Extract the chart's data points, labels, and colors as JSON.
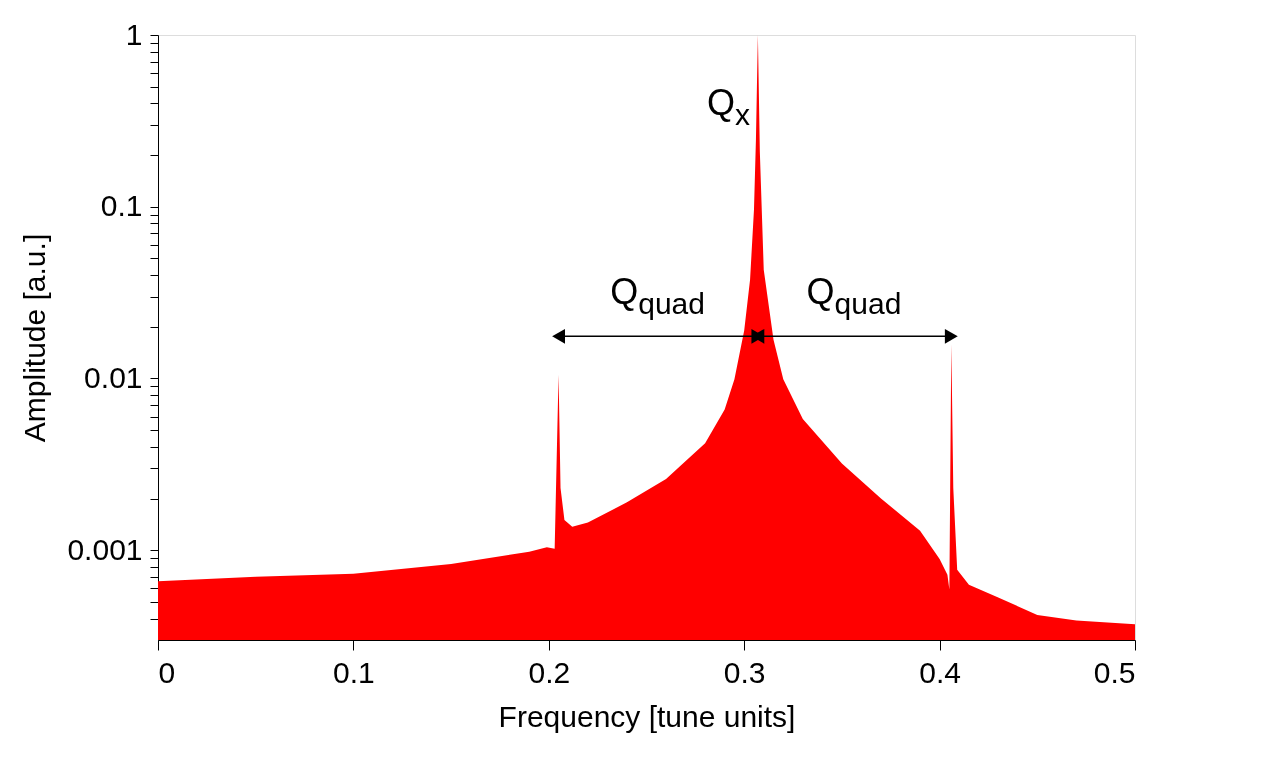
{
  "chart_data": {
    "type": "area",
    "xlabel": "Frequency [tune units]",
    "ylabel": "Amplitude [a.u.]",
    "log": "y",
    "grid": false,
    "xlim": [
      0,
      0.5
    ],
    "xticks": [
      0,
      0.1,
      0.2,
      0.3,
      0.4,
      0.5
    ],
    "ylim": [
      0.0003,
      1
    ],
    "yticks": [
      {
        "value": 0.0004,
        "label": null
      },
      {
        "value": 0.0005,
        "label": null
      },
      {
        "value": 0.0006,
        "label": null
      },
      {
        "value": 0.0007,
        "label": null
      },
      {
        "value": 0.0008,
        "label": null
      },
      {
        "value": 0.0009,
        "label": null
      },
      0.001,
      {
        "value": 0.002,
        "label": null
      },
      {
        "value": 0.003,
        "label": null
      },
      {
        "value": 0.004,
        "label": null
      },
      {
        "value": 0.005,
        "label": null
      },
      {
        "value": 0.006,
        "label": null
      },
      {
        "value": 0.007,
        "label": null
      },
      {
        "value": 0.008,
        "label": null
      },
      {
        "value": 0.009,
        "label": null
      },
      0.01,
      {
        "value": 0.02,
        "label": null
      },
      {
        "value": 0.03,
        "label": null
      },
      {
        "value": 0.04,
        "label": null
      },
      {
        "value": 0.05,
        "label": null
      },
      {
        "value": 0.06,
        "label": null
      },
      {
        "value": 0.07,
        "label": null
      },
      {
        "value": 0.08,
        "label": null
      },
      {
        "value": 0.09,
        "label": null
      },
      0.1,
      {
        "value": 0.2,
        "label": null
      },
      {
        "value": 0.3,
        "label": null
      },
      {
        "value": 0.4,
        "label": null
      },
      {
        "value": 0.5,
        "label": null
      },
      {
        "value": 0.6,
        "label": null
      },
      {
        "value": 0.7,
        "label": null
      },
      {
        "value": 0.8,
        "label": null
      },
      {
        "value": 0.9,
        "label": null
      },
      1
    ],
    "x": [
      0,
      0.05,
      0.1,
      0.15,
      0.19,
      0.199,
      0.203,
      0.205,
      0.206,
      0.208,
      0.212,
      0.22,
      0.24,
      0.26,
      0.28,
      0.29,
      0.295,
      0.3,
      0.303,
      0.305,
      0.306,
      0.307,
      0.308,
      0.31,
      0.315,
      0.32,
      0.33,
      0.35,
      0.37,
      0.39,
      0.4,
      0.404,
      0.405,
      0.406,
      0.407,
      0.409,
      0.415,
      0.43,
      0.45,
      0.47,
      0.5
    ],
    "series": [
      {
        "color": "#ff0000",
        "values": [
          0.00066,
          0.0007,
          0.00073,
          0.00083,
          0.00098,
          0.00104,
          0.00102,
          0.0105,
          0.0023,
          0.0015,
          0.00137,
          0.00145,
          0.0019,
          0.0026,
          0.0042,
          0.0066,
          0.0099,
          0.019,
          0.0376,
          0.096,
          0.245,
          1,
          0.21,
          0.043,
          0.0168,
          0.0099,
          0.0058,
          0.0032,
          0.002,
          0.0013,
          0.00089,
          0.00072,
          0.00059,
          0.0158,
          0.0023,
          0.00077,
          0.00063,
          0.00053,
          0.00042,
          0.00039,
          0.00037
        ]
      }
    ],
    "annotations": [
      "Q$_{x}$",
      "Q$_{quad}$",
      "Q$_{quad}$"
    ]
  }
}
